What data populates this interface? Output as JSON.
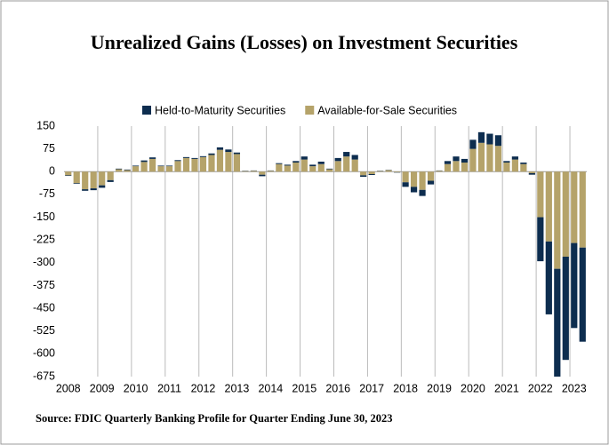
{
  "chart_data": {
    "type": "stacked_bar",
    "title": "Unrealized Gains (Losses) on Investment Securities",
    "source": "Source: FDIC Quarterly Banking Profile for Quarter Ending June 30, 2023",
    "categories": [
      "2008",
      null,
      null,
      null,
      "2009",
      null,
      null,
      null,
      "2010",
      null,
      null,
      null,
      "2011",
      null,
      null,
      null,
      "2012",
      null,
      null,
      null,
      "2013",
      null,
      null,
      null,
      "2014",
      null,
      null,
      null,
      "2015",
      null,
      null,
      null,
      "2016",
      null,
      null,
      null,
      "2017",
      null,
      null,
      null,
      "2018",
      null,
      null,
      null,
      "2019",
      null,
      null,
      null,
      "2020",
      null,
      null,
      null,
      "2021",
      null,
      null,
      null,
      "2022",
      null,
      null,
      null,
      "2023",
      null
    ],
    "series": [
      {
        "name": "Held-to-Maturity Securities",
        "color": "#0d2d4f",
        "values": [
          -2,
          -2,
          -5,
          -6,
          -8,
          -6,
          2,
          2,
          2,
          5,
          5,
          2,
          2,
          3,
          3,
          3,
          3,
          5,
          8,
          8,
          5,
          1,
          1,
          -5,
          1,
          3,
          3,
          5,
          10,
          5,
          8,
          2,
          10,
          15,
          15,
          -5,
          -3,
          1,
          1,
          -1,
          -15,
          -18,
          -20,
          -12,
          1,
          10,
          15,
          12,
          30,
          35,
          35,
          35,
          5,
          10,
          5,
          -5,
          -145,
          -240,
          -355,
          -340,
          -280,
          -310
        ]
      },
      {
        "name": "Available-for-Sale Securities",
        "color": "#b5a36a",
        "values": [
          -12,
          -38,
          -58,
          -55,
          -45,
          -28,
          8,
          5,
          18,
          32,
          42,
          18,
          18,
          35,
          45,
          42,
          48,
          55,
          72,
          65,
          58,
          2,
          3,
          -10,
          3,
          25,
          20,
          30,
          40,
          18,
          25,
          8,
          35,
          50,
          40,
          -12,
          -8,
          2,
          5,
          -2,
          -35,
          -50,
          -60,
          -30,
          3,
          25,
          35,
          30,
          75,
          95,
          90,
          85,
          30,
          40,
          25,
          -5,
          -150,
          -230,
          -320,
          -280,
          -235,
          -250
        ]
      }
    ],
    "ylim": [
      -675,
      150
    ],
    "yticks": [
      150,
      75,
      0,
      -75,
      -150,
      -225,
      -300,
      -375,
      -450,
      -525,
      -600,
      -675
    ],
    "grid": true,
    "legend": "top"
  }
}
